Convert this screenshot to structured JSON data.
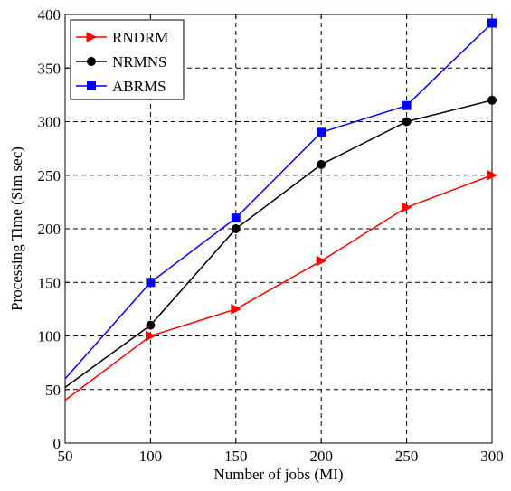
{
  "chart_data": {
    "type": "line",
    "title": "",
    "xlabel": "Number of jobs (MI)",
    "ylabel": "Processing Time (Sim sec)",
    "xlim": [
      50,
      300
    ],
    "ylim": [
      0,
      400
    ],
    "xticks": [
      "50",
      "100",
      "150",
      "200",
      "250",
      "300"
    ],
    "yticks": [
      "0",
      "50",
      "100",
      "150",
      "200",
      "250",
      "300",
      "350",
      "400"
    ],
    "grid": true,
    "legend_position": "top-left",
    "x": [
      50,
      100,
      150,
      200,
      250,
      300
    ],
    "series": [
      {
        "name": "RNDRM",
        "color": "#ff0000",
        "marker": "triangle-right",
        "values": [
          40,
          100,
          125,
          170,
          220,
          250
        ]
      },
      {
        "name": "NRMNS",
        "color": "#000000",
        "marker": "circle",
        "values": [
          52,
          110,
          200,
          260,
          300,
          320
        ]
      },
      {
        "name": "ABRMS",
        "color": "#0000ff",
        "marker": "square",
        "values": [
          60,
          150,
          210,
          290,
          315,
          392
        ]
      }
    ]
  }
}
